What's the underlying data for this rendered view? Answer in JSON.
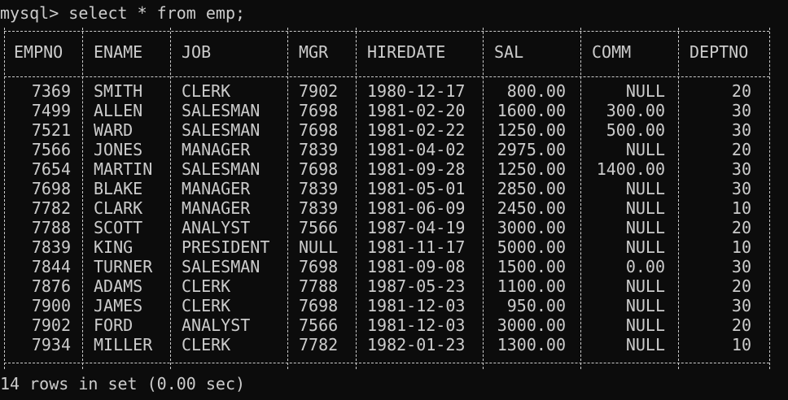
{
  "terminal": {
    "prompt": "mysql> select * from emp;",
    "footer": "14 rows in set (0.00 sec)"
  },
  "columns": [
    "EMPNO",
    "ENAME",
    "JOB",
    "MGR",
    "HIREDATE",
    "SAL",
    "COMM",
    "DEPTNO"
  ],
  "rows": [
    [
      "7369",
      "SMITH",
      "CLERK",
      "7902",
      "1980-12-17",
      "800.00",
      "NULL",
      "20"
    ],
    [
      "7499",
      "ALLEN",
      "SALESMAN",
      "7698",
      "1981-02-20",
      "1600.00",
      "300.00",
      "30"
    ],
    [
      "7521",
      "WARD",
      "SALESMAN",
      "7698",
      "1981-02-22",
      "1250.00",
      "500.00",
      "30"
    ],
    [
      "7566",
      "JONES",
      "MANAGER",
      "7839",
      "1981-04-02",
      "2975.00",
      "NULL",
      "20"
    ],
    [
      "7654",
      "MARTIN",
      "SALESMAN",
      "7698",
      "1981-09-28",
      "1250.00",
      "1400.00",
      "30"
    ],
    [
      "7698",
      "BLAKE",
      "MANAGER",
      "7839",
      "1981-05-01",
      "2850.00",
      "NULL",
      "30"
    ],
    [
      "7782",
      "CLARK",
      "MANAGER",
      "7839",
      "1981-06-09",
      "2450.00",
      "NULL",
      "10"
    ],
    [
      "7788",
      "SCOTT",
      "ANALYST",
      "7566",
      "1987-04-19",
      "3000.00",
      "NULL",
      "20"
    ],
    [
      "7839",
      "KING",
      "PRESIDENT",
      "NULL",
      "1981-11-17",
      "5000.00",
      "NULL",
      "10"
    ],
    [
      "7844",
      "TURNER",
      "SALESMAN",
      "7698",
      "1981-09-08",
      "1500.00",
      "0.00",
      "30"
    ],
    [
      "7876",
      "ADAMS",
      "CLERK",
      "7788",
      "1987-05-23",
      "1100.00",
      "NULL",
      "20"
    ],
    [
      "7900",
      "JAMES",
      "CLERK",
      "7698",
      "1981-12-03",
      "950.00",
      "NULL",
      "30"
    ],
    [
      "7902",
      "FORD",
      "ANALYST",
      "7566",
      "1981-12-03",
      "3000.00",
      "NULL",
      "20"
    ],
    [
      "7934",
      "MILLER",
      "CLERK",
      "7782",
      "1982-01-23",
      "1300.00",
      "NULL",
      "10"
    ]
  ]
}
